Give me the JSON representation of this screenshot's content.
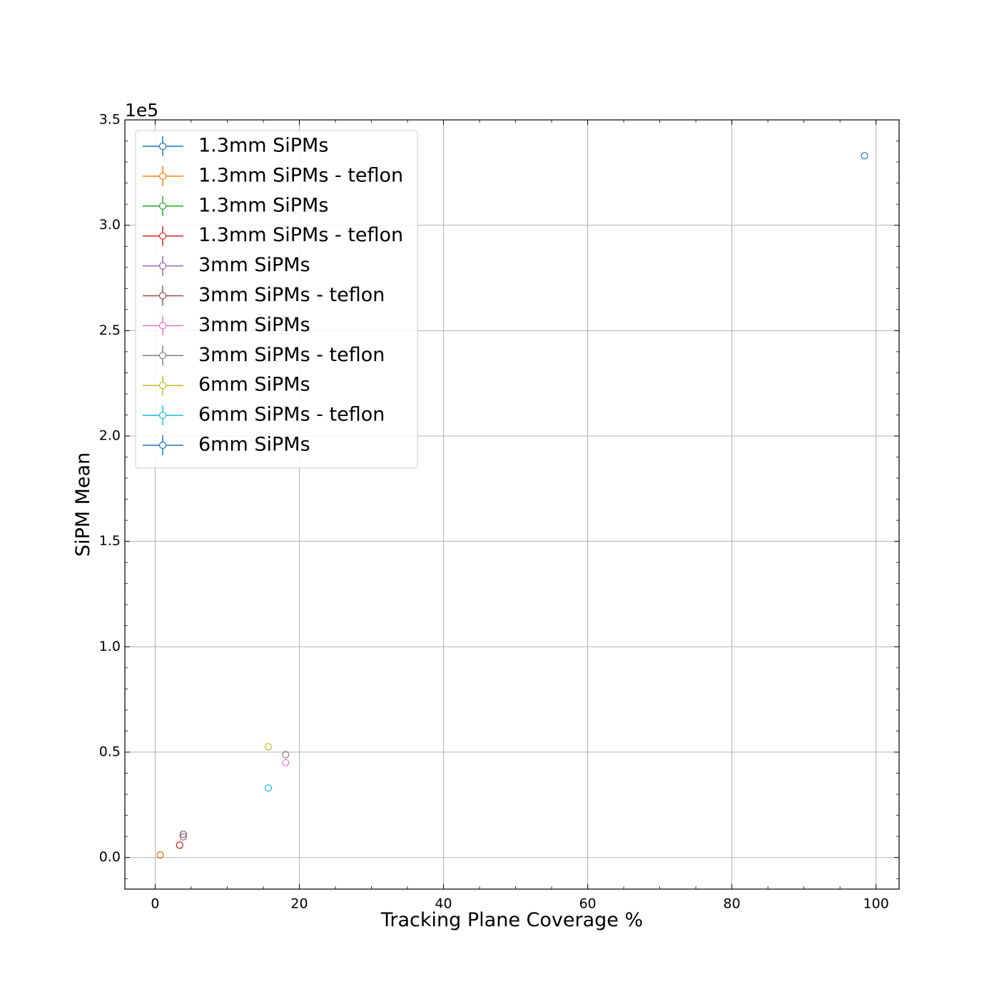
{
  "chart_data": {
    "type": "scatter",
    "title": "",
    "xlabel": "Tracking Plane Coverage %",
    "ylabel": "SiPM Mean",
    "y_offset_label": "1e5",
    "y_scale": 100000,
    "xlim": [
      -4.2,
      103.2
    ],
    "ylim": [
      -15000,
      350000
    ],
    "x_ticks": [
      0,
      20,
      40,
      60,
      80,
      100
    ],
    "x_tick_labels": [
      "0",
      "20",
      "40",
      "60",
      "80",
      "100"
    ],
    "y_ticks": [
      0,
      50000,
      100000,
      150000,
      200000,
      250000,
      300000,
      350000
    ],
    "y_tick_labels": [
      "0.0",
      "0.5",
      "1.0",
      "1.5",
      "2.0",
      "2.5",
      "3.0",
      "3.5"
    ],
    "grid": true,
    "legend_position": "upper-left",
    "marker": "open-circle-with-errorbars",
    "series": [
      {
        "name": "1.3mm SiPMs",
        "color": "#1f77b4",
        "x": [
          0.7
        ],
        "y": [
          1200
        ]
      },
      {
        "name": "1.3mm SiPMs - teflon",
        "color": "#ff7f0e",
        "x": [
          0.7
        ],
        "y": [
          1300
        ]
      },
      {
        "name": "1.3mm SiPMs",
        "color": "#2ca02c",
        "x": [
          3.4
        ],
        "y": [
          5800
        ]
      },
      {
        "name": "1.3mm SiPMs - teflon",
        "color": "#d62728",
        "x": [
          3.4
        ],
        "y": [
          5900
        ]
      },
      {
        "name": "3mm SiPMs",
        "color": "#9467bd",
        "x": [
          3.9
        ],
        "y": [
          9800
        ]
      },
      {
        "name": "3mm SiPMs - teflon",
        "color": "#8c564b",
        "x": [
          3.9
        ],
        "y": [
          11000
        ]
      },
      {
        "name": "3mm SiPMs",
        "color": "#e377c2",
        "x": [
          18.1
        ],
        "y": [
          45000
        ]
      },
      {
        "name": "3mm SiPMs - teflon",
        "color": "#7f7f7f",
        "x": [
          18.1
        ],
        "y": [
          48800
        ]
      },
      {
        "name": "6mm SiPMs",
        "color": "#bcbd22",
        "x": [
          15.7
        ],
        "y": [
          52500
        ]
      },
      {
        "name": "6mm SiPMs - teflon",
        "color": "#17becf",
        "x": [
          15.7
        ],
        "y": [
          33000
        ]
      },
      {
        "name": "6mm SiPMs",
        "color": "#1f77b4",
        "x": [
          98.4
        ],
        "y": [
          333000
        ]
      }
    ]
  }
}
